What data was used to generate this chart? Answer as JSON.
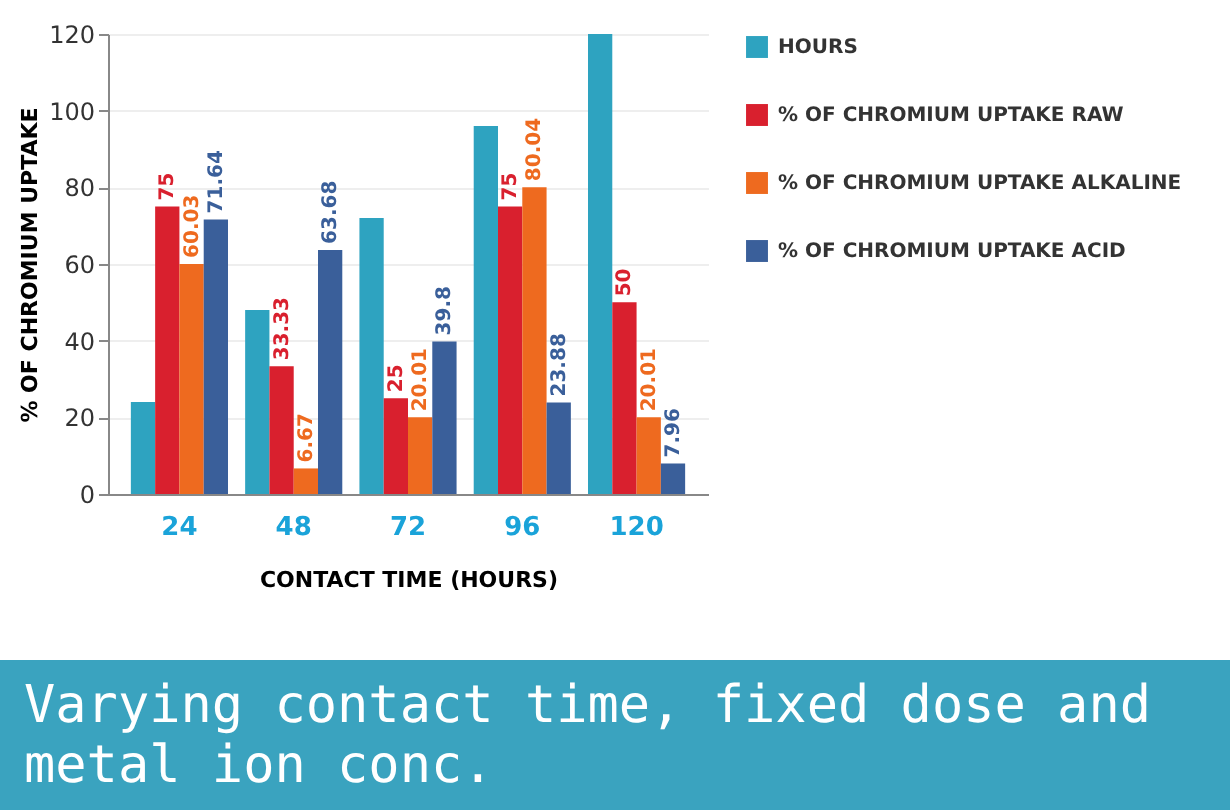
{
  "chart_data": {
    "type": "bar",
    "xlabel": "CONTACT TIME (HOURS)",
    "ylabel": "% OF CHROMIUM UPTAKE",
    "categories": [
      "24",
      "48",
      "72",
      "96",
      "120"
    ],
    "series": [
      {
        "name": "HOURS",
        "color": "#2ea3c0",
        "values": [
          24,
          48,
          72,
          96,
          120
        ]
      },
      {
        "name": "% OF CHROMIUM UPTAKE RAW",
        "color": "#d9202e",
        "values": [
          75,
          33.33,
          25,
          75,
          50
        ],
        "value_labels": [
          "75",
          "33.33",
          "25",
          "75",
          "50"
        ]
      },
      {
        "name": "% OF CHROMIUM UPTAKE ALKALINE",
        "color": "#ee6a1f",
        "values": [
          60.03,
          6.67,
          20.01,
          80.04,
          20.01
        ],
        "value_labels": [
          "60.03",
          "6.67",
          "20.01",
          "80.04",
          "20.01"
        ]
      },
      {
        "name": "% OF CHROMIUM UPTAKE ACID",
        "color": "#3a5f9a",
        "values": [
          71.64,
          63.68,
          39.8,
          23.88,
          7.96
        ],
        "value_labels": [
          "71.64",
          "63.68",
          "39.8",
          "23.88",
          "7.96"
        ]
      }
    ],
    "ylim": [
      0,
      120
    ],
    "yticks": [
      0,
      20,
      40,
      60,
      80,
      100,
      120
    ],
    "grid": "y",
    "legend": "right",
    "annotations": [
      "Varying contact time, fixed dose and metal ion conc."
    ]
  }
}
